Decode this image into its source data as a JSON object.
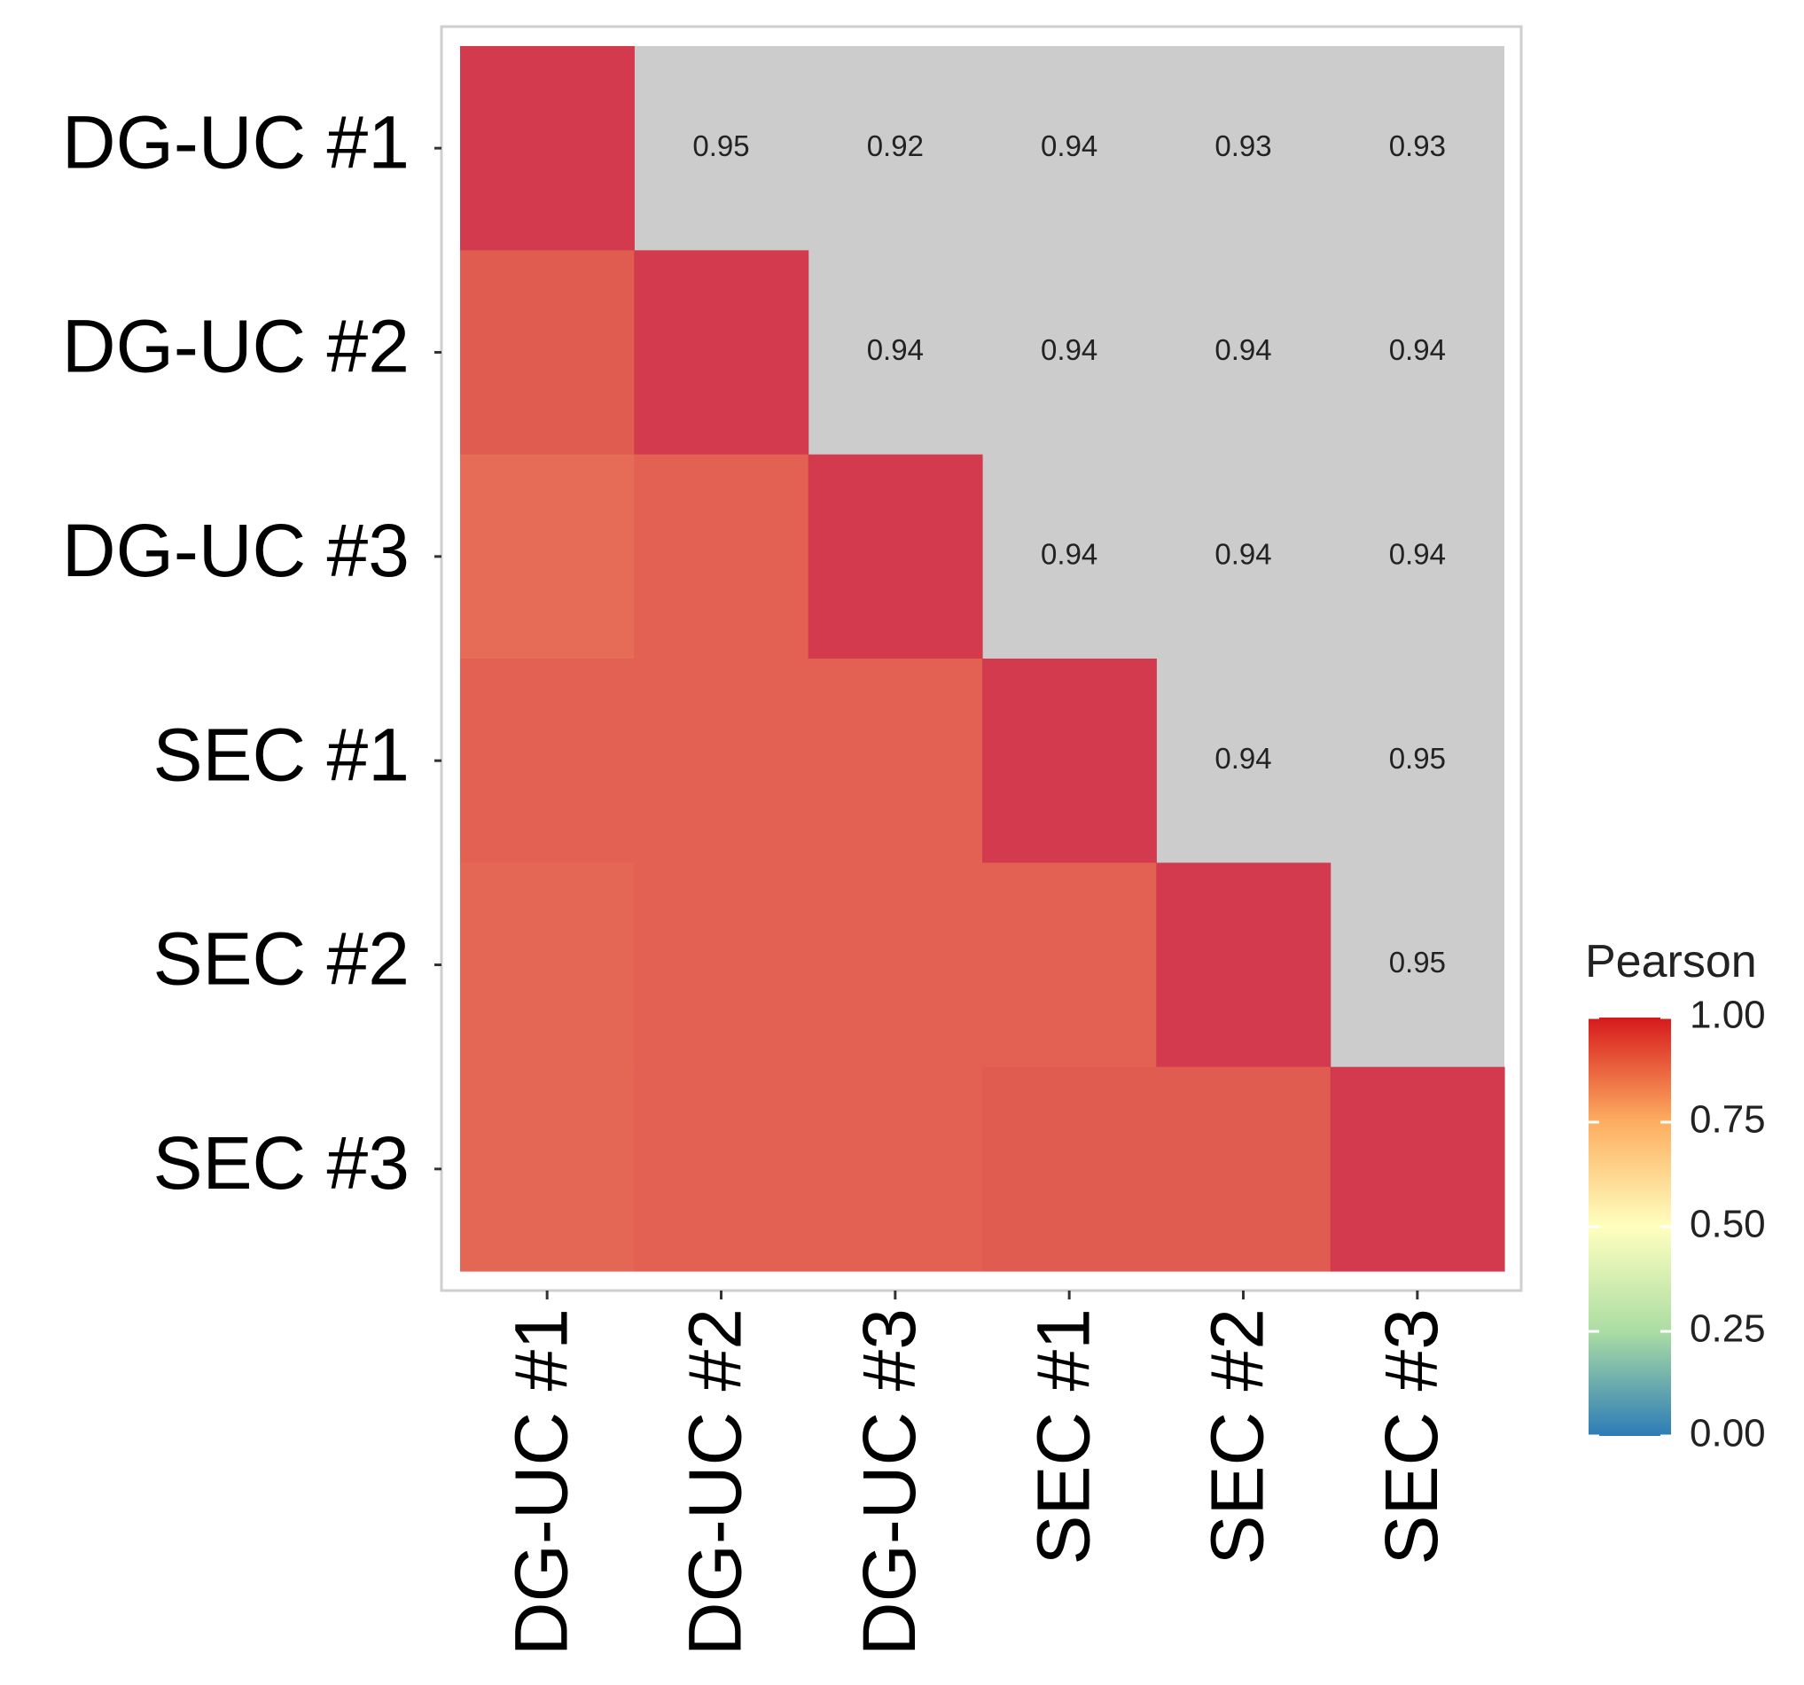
{
  "chart_data": {
    "type": "heatmap",
    "title": "",
    "labels": [
      "DG-UC #1",
      "DG-UC #2",
      "DG-UC #3",
      "SEC #1",
      "SEC #2",
      "SEC #3"
    ],
    "values": [
      [
        1.0,
        0.95,
        0.92,
        0.94,
        0.93,
        0.93
      ],
      [
        0.95,
        1.0,
        0.94,
        0.94,
        0.94,
        0.94
      ],
      [
        0.92,
        0.94,
        1.0,
        0.94,
        0.94,
        0.94
      ],
      [
        0.94,
        0.94,
        0.94,
        1.0,
        0.94,
        0.95
      ],
      [
        0.93,
        0.94,
        0.94,
        0.94,
        1.0,
        0.95
      ],
      [
        0.93,
        0.94,
        0.94,
        0.95,
        0.95,
        1.0
      ]
    ],
    "upper_triangle_display": "text",
    "lower_triangle_display": "color",
    "upper_background": "#cccccc",
    "legend": {
      "title": "Pearson",
      "ticks": [
        "1.00",
        "0.75",
        "0.50",
        "0.25",
        "0.00"
      ],
      "colors": [
        "#2c7bb6",
        "#abdda4",
        "#ffffbf",
        "#fdae61",
        "#d7191c"
      ],
      "placement": "right"
    }
  }
}
